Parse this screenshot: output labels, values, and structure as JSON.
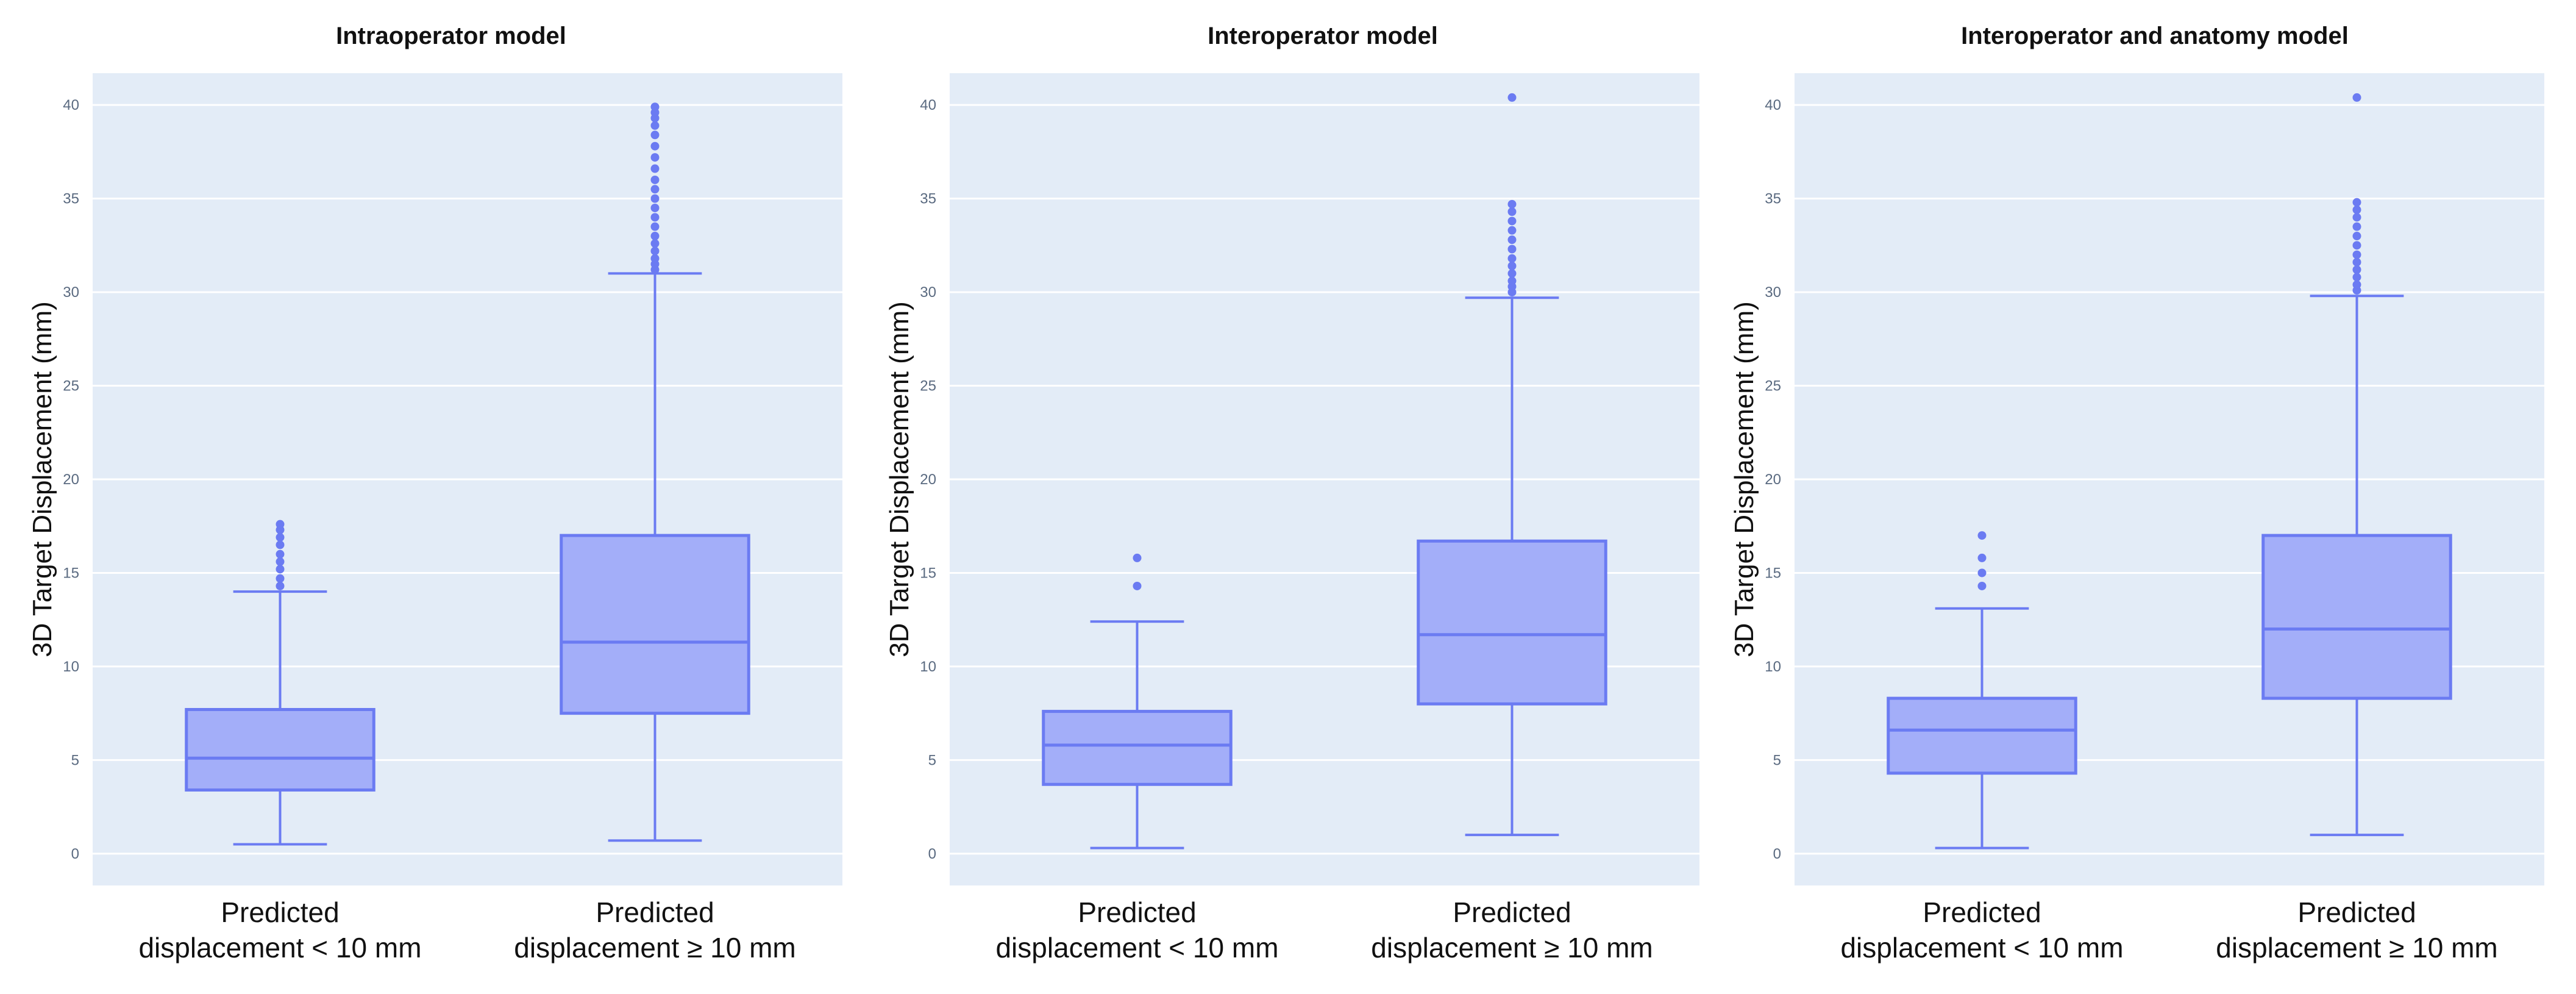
{
  "chart_data": [
    {
      "type": "box",
      "title": "Intraoperator model",
      "ylabel": "3D Target Displacement (mm)",
      "xlabel": "",
      "ylim": [
        -1.7,
        41.7
      ],
      "yticks": [
        0,
        5,
        10,
        15,
        20,
        25,
        30,
        35,
        40
      ],
      "grid": true,
      "box_color": "#6b7bf2",
      "box_fill": "#a3aef9",
      "background": "#e3ecf7",
      "categories": [
        {
          "line1": "Predicted",
          "line2": "displacement < 10 mm"
        },
        {
          "line1": "Predicted",
          "line2": "displacement ≥ 10 mm"
        }
      ],
      "boxes": [
        {
          "min": 0.5,
          "q1": 3.4,
          "median": 5.1,
          "q3": 7.7,
          "max": 14.0,
          "outliers": [
            14.3,
            14.7,
            15.2,
            15.6,
            16.0,
            16.5,
            16.9,
            17.3,
            17.6
          ]
        },
        {
          "min": 0.7,
          "q1": 7.5,
          "median": 11.3,
          "q3": 17.0,
          "max": 31.0,
          "outliers": [
            31.2,
            31.5,
            31.8,
            32.2,
            32.6,
            33.0,
            33.5,
            34.0,
            34.5,
            35.0,
            35.5,
            36.0,
            36.6,
            37.2,
            37.8,
            38.4,
            38.9,
            39.3,
            39.6,
            39.9
          ]
        }
      ]
    },
    {
      "type": "box",
      "title": "Interoperator model",
      "ylabel": "3D Target Displacement (mm)",
      "xlabel": "",
      "ylim": [
        -1.7,
        41.7
      ],
      "yticks": [
        0,
        5,
        10,
        15,
        20,
        25,
        30,
        35,
        40
      ],
      "grid": true,
      "box_color": "#6b7bf2",
      "box_fill": "#a3aef9",
      "background": "#e3ecf7",
      "categories": [
        {
          "line1": "Predicted",
          "line2": "displacement < 10 mm"
        },
        {
          "line1": "Predicted",
          "line2": "displacement ≥ 10 mm"
        }
      ],
      "boxes": [
        {
          "min": 0.3,
          "q1": 3.7,
          "median": 5.8,
          "q3": 7.6,
          "max": 12.4,
          "outliers": [
            14.3,
            15.8
          ]
        },
        {
          "min": 1.0,
          "q1": 8.0,
          "median": 11.7,
          "q3": 16.7,
          "max": 29.7,
          "outliers": [
            30.0,
            30.3,
            30.6,
            31.0,
            31.4,
            31.8,
            32.3,
            32.8,
            33.3,
            33.8,
            34.3,
            34.7,
            40.4
          ]
        }
      ]
    },
    {
      "type": "box",
      "title": "Interoperator  and anatomy model",
      "ylabel": "3D Target Displacement (mm)",
      "xlabel": "",
      "ylim": [
        -1.7,
        41.7
      ],
      "yticks": [
        0,
        5,
        10,
        15,
        20,
        25,
        30,
        35,
        40
      ],
      "grid": true,
      "box_color": "#6b7bf2",
      "box_fill": "#a3aef9",
      "background": "#e3ecf7",
      "categories": [
        {
          "line1": "Predicted",
          "line2": "displacement < 10 mm"
        },
        {
          "line1": "Predicted",
          "line2": "displacement ≥ 10 mm"
        }
      ],
      "boxes": [
        {
          "min": 0.3,
          "q1": 4.3,
          "median": 6.6,
          "q3": 8.3,
          "max": 13.1,
          "outliers": [
            14.3,
            15.0,
            15.8,
            17.0
          ]
        },
        {
          "min": 1.0,
          "q1": 8.3,
          "median": 12.0,
          "q3": 17.0,
          "max": 29.8,
          "outliers": [
            30.1,
            30.4,
            30.8,
            31.2,
            31.6,
            32.0,
            32.5,
            33.0,
            33.5,
            34.0,
            34.4,
            34.8,
            40.4
          ]
        }
      ]
    }
  ]
}
